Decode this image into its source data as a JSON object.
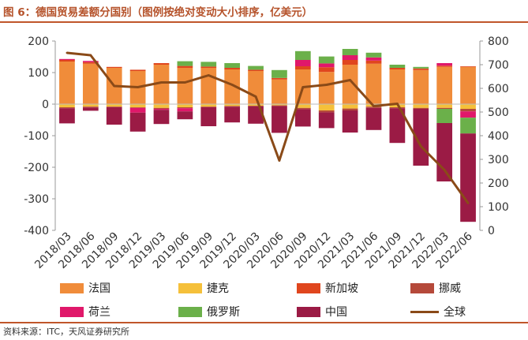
{
  "title": "图 6：德国贸易差额分国别（图例按绝对变动大小排序，亿美元）",
  "source": "资料来源：ITC，天风证券研究所",
  "colors": {
    "accent": "#c0562a",
    "法国": "#f08c3a",
    "捷克": "#f5c03a",
    "新加坡": "#e0461e",
    "挪威": "#b5493a",
    "荷兰": "#e0186a",
    "俄罗斯": "#6bb04a",
    "中国": "#9b1b45",
    "全球": "#8a4a18"
  },
  "chart_data": {
    "type": "bar",
    "stacked": true,
    "categories": [
      "2018/03",
      "2018/06",
      "2018/09",
      "2018/12",
      "2019/03",
      "2019/06",
      "2019/09",
      "2019/12",
      "2020/03",
      "2020/06",
      "2020/09",
      "2020/12",
      "2021/03",
      "2021/06",
      "2021/09",
      "2021/12",
      "2022/03",
      "2022/06"
    ],
    "ylim": [
      -400,
      200
    ],
    "yticks": [
      -400,
      -300,
      -200,
      -100,
      0,
      100,
      200
    ],
    "y2lim": [
      0,
      800
    ],
    "y2ticks": [
      0,
      100,
      200,
      300,
      400,
      500,
      600,
      700,
      800
    ],
    "grid": false,
    "legend_position": "bottom",
    "series": [
      {
        "name": "法国",
        "kind": "bar",
        "values": [
          135,
          128,
          115,
          105,
          125,
          115,
          115,
          110,
          105,
          78,
          110,
          102,
          125,
          128,
          110,
          108,
          118,
          118
        ]
      },
      {
        "name": "捷克",
        "kind": "bar",
        "values": [
          -10,
          -8,
          -8,
          -10,
          -12,
          -10,
          -8,
          -6,
          -5,
          -4,
          -12,
          -20,
          -14,
          -8,
          -10,
          -12,
          -12,
          -15
        ]
      },
      {
        "name": "新加坡",
        "kind": "bar",
        "values": [
          5,
          5,
          3,
          4,
          5,
          6,
          4,
          5,
          4,
          5,
          10,
          15,
          15,
          10,
          5,
          5,
          4,
          2
        ]
      },
      {
        "name": "挪威",
        "kind": "bar",
        "values": [
          -3,
          -3,
          -2,
          -2,
          -3,
          -3,
          -2,
          -2,
          -2,
          -2,
          -4,
          -6,
          -6,
          -4,
          -3,
          -3,
          -3,
          -8
        ]
      },
      {
        "name": "荷兰",
        "kind": "bar",
        "values": [
          3,
          4,
          0,
          -15,
          -3,
          -10,
          0,
          0,
          0,
          0,
          20,
          12,
          15,
          10,
          0,
          0,
          8,
          -20
        ]
      },
      {
        "name": "俄罗斯",
        "kind": "bar",
        "values": [
          0,
          0,
          0,
          0,
          0,
          15,
          15,
          15,
          12,
          25,
          28,
          22,
          20,
          15,
          10,
          5,
          -45,
          -50
        ]
      },
      {
        "name": "中国",
        "kind": "bar",
        "values": [
          -48,
          -10,
          -55,
          -60,
          -45,
          -25,
          -60,
          -50,
          -55,
          -85,
          -55,
          -50,
          -70,
          -70,
          -110,
          -180,
          -185,
          -280
        ]
      },
      {
        "name": "全球",
        "kind": "line",
        "axis": "right",
        "values": [
          750,
          740,
          610,
          605,
          625,
          625,
          655,
          615,
          565,
          295,
          605,
          615,
          635,
          525,
          535,
          355,
          255,
          115
        ]
      }
    ]
  }
}
